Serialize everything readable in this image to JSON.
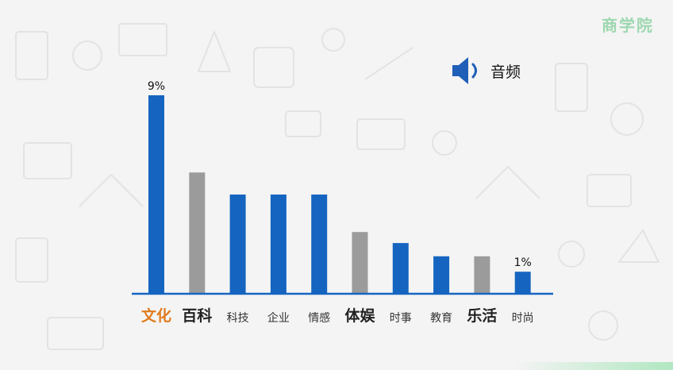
{
  "brand": {
    "text": "商学院",
    "color": "#8fd3a4"
  },
  "audio": {
    "icon": "speaker-icon",
    "label": "音频",
    "icon_color": "#1f5fb8"
  },
  "chart_data": {
    "type": "bar",
    "categories": [
      "文化",
      "百科",
      "科技",
      "企业",
      "情感",
      "体娱",
      "时事",
      "教育",
      "乐活",
      "时尚"
    ],
    "values": [
      9,
      5.5,
      4.5,
      4.5,
      4.5,
      2.8,
      2.3,
      1.7,
      1.7,
      1
    ],
    "value_labels": [
      "9%",
      "",
      "",
      "",
      "",
      "",
      "",
      "",
      "",
      "1%"
    ],
    "bar_colors": [
      "#1565c0",
      "#9b9b9b",
      "#1565c0",
      "#1565c0",
      "#1565c0",
      "#9b9b9b",
      "#1565c0",
      "#1565c0",
      "#9b9b9b",
      "#1565c0"
    ],
    "label_emphasis": [
      "highlight",
      "bold",
      "normal",
      "normal",
      "normal",
      "bold",
      "normal",
      "normal",
      "bold",
      "normal"
    ],
    "highlight_color": "#e07b1f",
    "ylim": [
      0,
      9
    ],
    "title": "",
    "xlabel": "",
    "ylabel": "",
    "grid": false,
    "legend": false
  }
}
